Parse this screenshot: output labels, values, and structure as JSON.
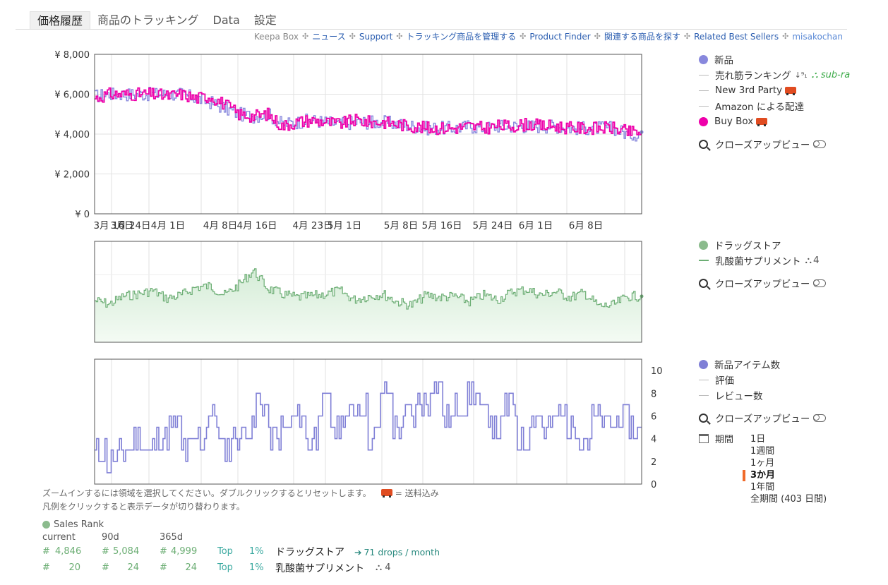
{
  "tabs": [
    "価格履歴",
    "商品のトラッキング",
    "Data",
    "設定"
  ],
  "nav": {
    "keepa_box": "Keepa Box",
    "news": "ニュース",
    "support": "Support",
    "manage": "トラッキング商品を管理する",
    "finder": "Product Finder",
    "related": "関連する商品を探す",
    "bestsellers": "Related Best Sellers",
    "user": "misakochan"
  },
  "legend1": {
    "new": "新品",
    "rank": "売れ筋ランキング",
    "subra": "sub-ra",
    "new3rd": "New 3rd Party",
    "amazon": "Amazon による配達",
    "buybox": "Buy Box",
    "closeup": "クローズアップビュー"
  },
  "legend2": {
    "store": "ドラッグストア",
    "cat": "乳酸菌サプリメント",
    "cat_count": "4",
    "closeup": "クローズアップビュー"
  },
  "legend3": {
    "items": "新品アイテム数",
    "rating": "評価",
    "reviews": "レビュー数",
    "closeup": "クローズアップビュー"
  },
  "period": {
    "label": "期間",
    "options": [
      "1日",
      "1週間",
      "1ヶ月",
      "3か月",
      "1年間",
      "全期間 (403 日間)"
    ],
    "selected": "3か月"
  },
  "notes": {
    "zoom": "ズームインするには領域を選択してください。ダブルクリックするとリセットします。",
    "shipping": "= 送料込み",
    "legend_click": "凡例をクリックすると表示データが切り替わります。"
  },
  "stats": {
    "title": "Sales Rank",
    "cols": [
      "current",
      "90d",
      "365d"
    ],
    "rows": [
      {
        "hash": "#",
        "current": "4,846",
        "d90": "5,084",
        "d365": "4,999",
        "top": "Top",
        "pct": "1%",
        "cat": "ドラッグストア",
        "extra": "71 drops / month"
      },
      {
        "hash": "#",
        "current": "20",
        "d90": "24",
        "d365": "24",
        "top": "Top",
        "pct": "1%",
        "cat": "乳酸菌サプリメント",
        "extra": "4"
      }
    ]
  },
  "colors": {
    "buybox": "#ee00aa",
    "new": "#8888dd",
    "salesrank": "#6cae74",
    "salesrank_fill": "#e3f4e4",
    "offers": "#7f7fd6"
  },
  "chart_data": [
    {
      "type": "line",
      "title": "",
      "x_ticks": [
        "3月 16日",
        "3月 24日",
        "4月 1日",
        "4月 8日",
        "4月 16日",
        "4月 23日",
        "5月 1日",
        "5月 8日",
        "5月 16日",
        "5月 24日",
        "6月 1日",
        "6月 8日"
      ],
      "y_ticks": [
        "¥ 0",
        "¥ 2,000",
        "¥ 4,000",
        "¥ 6,000",
        "¥ 8,000"
      ],
      "ylim": [
        0,
        8000
      ],
      "series": [
        {
          "name": "Buy Box",
          "values": [
            5800,
            6000,
            6000,
            6000,
            6000,
            5900,
            6000,
            5800,
            5900,
            5500,
            5000,
            4900,
            5000,
            4400,
            4600,
            4700,
            4600,
            4500,
            4700,
            4600,
            4600,
            4500,
            4400,
            4300,
            4300,
            4300,
            4400,
            4300,
            4400,
            4400,
            4500,
            4400,
            4400,
            4300,
            4300,
            4300,
            4300,
            4100
          ]
        },
        {
          "name": "新品",
          "values": [
            5900,
            6000,
            6000,
            6000,
            6000,
            6000,
            6000,
            5800,
            5600,
            5300,
            5000,
            4900,
            5000,
            4500,
            4600,
            4700,
            4600,
            4500,
            4600,
            4600,
            4600,
            4500,
            4400,
            4300,
            4300,
            4300,
            4400,
            4300,
            4400,
            4400,
            4400,
            4400,
            4400,
            4300,
            4300,
            4300,
            4300,
            4000
          ]
        }
      ]
    },
    {
      "type": "area",
      "title": "",
      "series": [
        {
          "name": "ドラッグストア",
          "values": [
            5300,
            5600,
            4900,
            4700,
            4400,
            5100,
            4800,
            4100,
            4000,
            4800,
            3900,
            2600,
            4200,
            4700,
            5000,
            4900,
            4700,
            4400,
            5200,
            4900,
            4700,
            5400,
            5700,
            4800,
            5000,
            4900,
            5400,
            4800,
            5200,
            4500,
            4300,
            4800,
            4500,
            5000,
            4600,
            5800,
            5700,
            4900
          ]
        }
      ]
    },
    {
      "type": "line",
      "title": "",
      "y_ticks": [
        "0",
        "2",
        "4",
        "6",
        "8",
        "10"
      ],
      "ylim": [
        0,
        11
      ],
      "series": [
        {
          "name": "新品アイテム数",
          "values": [
            3,
            2,
            3,
            4,
            3,
            4,
            5,
            3,
            4,
            6,
            3,
            4,
            5,
            7,
            4,
            5,
            6,
            4,
            7,
            5,
            6,
            7,
            4,
            8,
            5,
            6,
            7,
            9,
            6,
            7,
            8,
            6,
            5,
            7,
            4,
            6,
            5,
            6,
            5,
            4,
            6,
            5,
            6,
            5
          ]
        }
      ]
    }
  ]
}
